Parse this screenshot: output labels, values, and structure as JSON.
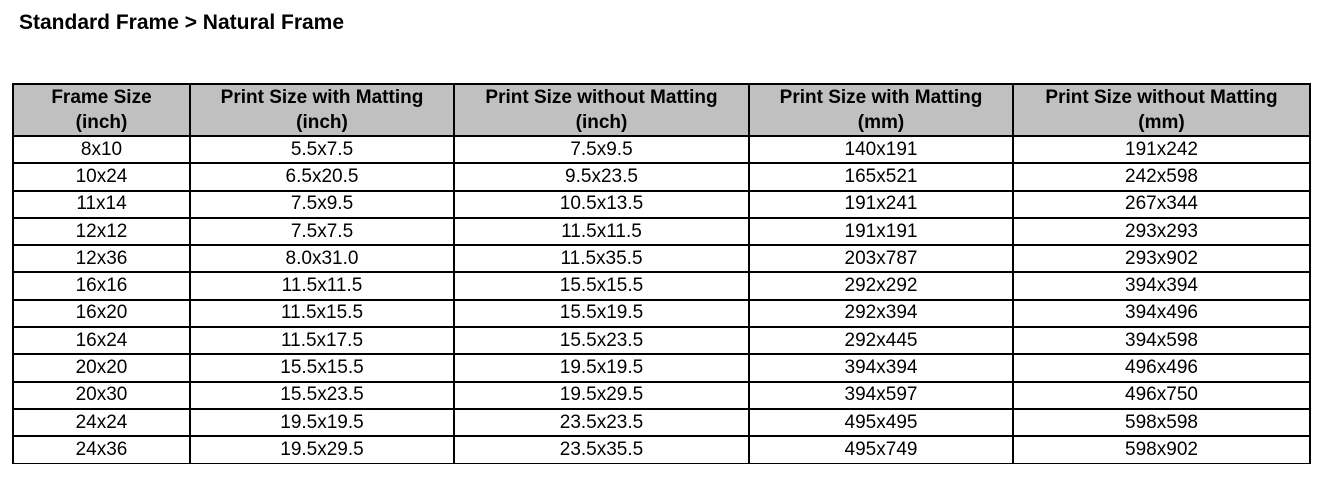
{
  "title": "Standard Frame > Natural Frame",
  "headers": [
    {
      "line1": "Frame Size",
      "line2": "(inch)"
    },
    {
      "line1": "Print Size with Matting",
      "line2": "(inch)"
    },
    {
      "line1": "Print Size without Matting",
      "line2": "(inch)"
    },
    {
      "line1": "Print Size with Matting",
      "line2": "(mm)"
    },
    {
      "line1": "Print Size without Matting",
      "line2": "(mm)"
    }
  ],
  "rows": [
    [
      "8x10",
      "5.5x7.5",
      "7.5x9.5",
      "140x191",
      "191x242"
    ],
    [
      "10x24",
      "6.5x20.5",
      "9.5x23.5",
      "165x521",
      "242x598"
    ],
    [
      "11x14",
      "7.5x9.5",
      "10.5x13.5",
      "191x241",
      "267x344"
    ],
    [
      "12x12",
      "7.5x7.5",
      "11.5x11.5",
      "191x191",
      "293x293"
    ],
    [
      "12x36",
      "8.0x31.0",
      "11.5x35.5",
      "203x787",
      "293x902"
    ],
    [
      "16x16",
      "11.5x11.5",
      "15.5x15.5",
      "292x292",
      "394x394"
    ],
    [
      "16x20",
      "11.5x15.5",
      "15.5x19.5",
      "292x394",
      "394x496"
    ],
    [
      "16x24",
      "11.5x17.5",
      "15.5x23.5",
      "292x445",
      "394x598"
    ],
    [
      "20x20",
      "15.5x15.5",
      "19.5x19.5",
      "394x394",
      "496x496"
    ],
    [
      "20x30",
      "15.5x23.5",
      "19.5x29.5",
      "394x597",
      "496x750"
    ],
    [
      "24x24",
      "19.5x19.5",
      "23.5x23.5",
      "495x495",
      "598x598"
    ],
    [
      "24x36",
      "19.5x29.5",
      "23.5x35.5",
      "495x749",
      "598x902"
    ]
  ]
}
